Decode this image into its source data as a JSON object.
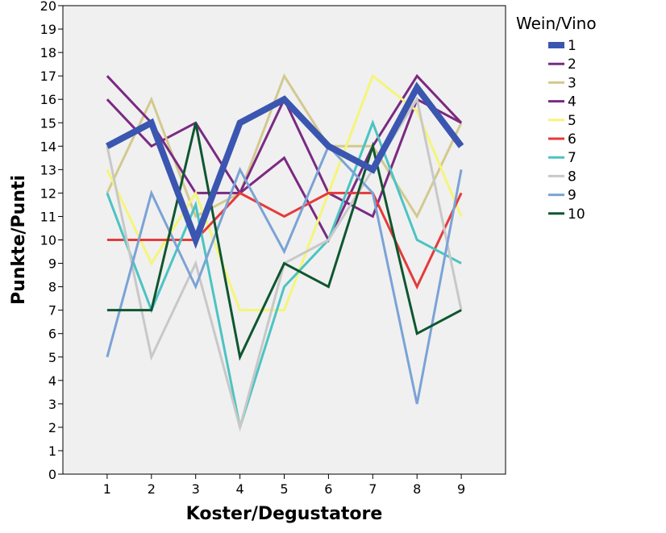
{
  "chart_data": {
    "type": "line",
    "xlabel": "Koster/Degustatore",
    "ylabel": "Punkte/Punti",
    "x": [
      1,
      2,
      3,
      4,
      5,
      6,
      7,
      8,
      9
    ],
    "xlim": [
      0,
      10
    ],
    "ylim": [
      0,
      20
    ],
    "yticks": [
      0,
      1,
      2,
      3,
      4,
      5,
      6,
      7,
      8,
      9,
      10,
      11,
      12,
      13,
      14,
      15,
      16,
      17,
      18,
      19,
      20
    ],
    "grid": false,
    "background": "#f0f0f0",
    "legend": {
      "title": "Wein/Vino",
      "placement": "right"
    },
    "series": [
      {
        "name": "1",
        "color": "#3a56b0",
        "emphasis": true,
        "values": [
          14,
          15,
          10,
          15,
          16,
          14,
          13,
          16.5,
          14
        ]
      },
      {
        "name": "2",
        "color": "#7a2a82",
        "values": [
          16,
          14,
          15,
          12,
          13.5,
          10,
          14,
          17,
          15
        ]
      },
      {
        "name": "3",
        "color": "#d3c98f",
        "values": [
          12,
          16,
          11,
          12,
          17,
          14,
          14,
          11,
          15
        ]
      },
      {
        "name": "4",
        "color": "#7a2a82",
        "values": [
          17,
          15,
          12,
          12,
          16,
          12,
          11,
          16,
          15
        ]
      },
      {
        "name": "5",
        "color": "#f5f57a",
        "values": [
          13,
          9,
          12,
          7,
          7,
          12,
          17,
          15.5,
          11
        ]
      },
      {
        "name": "6",
        "color": "#e53a3a",
        "values": [
          10,
          10,
          10,
          12,
          11,
          12,
          12,
          8,
          12
        ]
      },
      {
        "name": "7",
        "color": "#4cc3c3",
        "values": [
          12,
          7,
          11.5,
          2,
          8,
          10,
          15,
          10,
          9
        ]
      },
      {
        "name": "8",
        "color": "#c8c8c8",
        "values": [
          14,
          5,
          9,
          2,
          9,
          10,
          13,
          16,
          7
        ]
      },
      {
        "name": "9",
        "color": "#7aa3d6",
        "values": [
          5,
          12,
          8,
          13,
          9.5,
          14,
          12,
          3,
          13
        ]
      },
      {
        "name": "10",
        "color": "#0f5630",
        "values": [
          7,
          7,
          15,
          5,
          9,
          8,
          14,
          6,
          7
        ]
      }
    ]
  }
}
